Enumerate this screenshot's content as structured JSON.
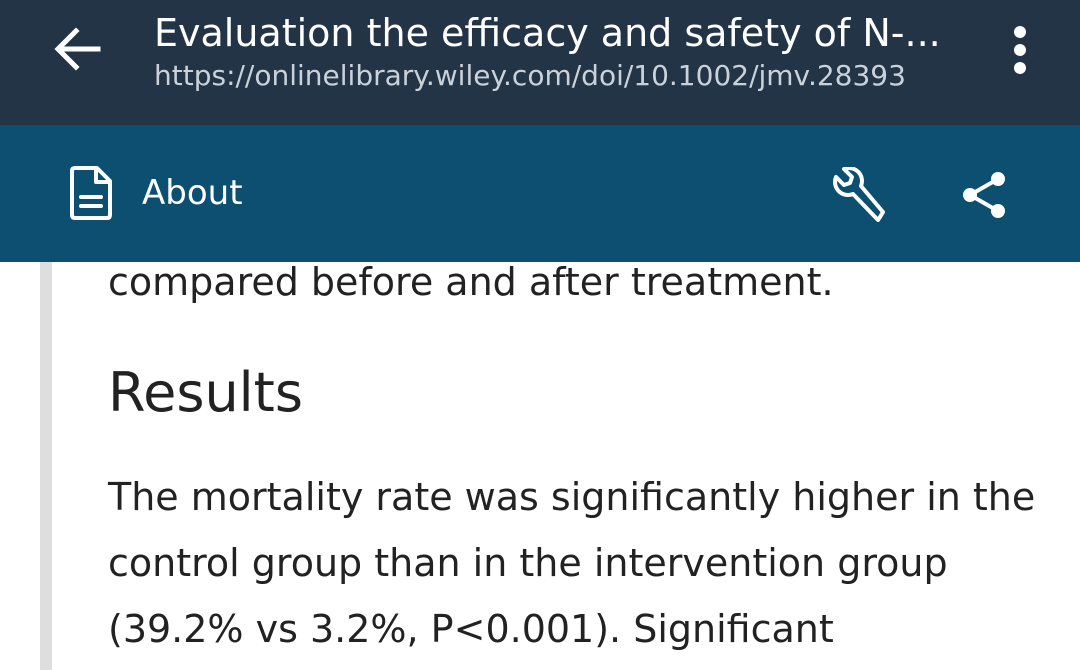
{
  "header": {
    "title": "Evaluation the efficacy and safety of N-...",
    "url": "https://onlinelibrary.wiley.com/doi/10.1002/jmv.28393",
    "back_icon": "arrow-left-icon",
    "menu_icon": "more-vertical-icon"
  },
  "toolbar": {
    "about_label": "About",
    "about_icon": "document-icon",
    "tools_icon": "wrench-icon",
    "share_icon": "share-icon"
  },
  "article": {
    "previous_line": "compared before and after treatment.",
    "section_heading": "Results",
    "paragraph": "The mortality rate was significantly higher in the control group than in the intervention group (39.2% vs 3.2%, P<0.001). Significant"
  },
  "colors": {
    "top_bar": "#243447",
    "toolbar": "#0c4f70",
    "text": "#222222",
    "url": "#c9d1da"
  }
}
